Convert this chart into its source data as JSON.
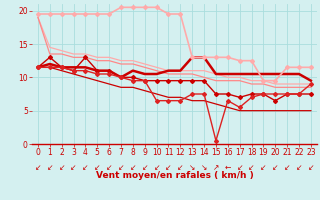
{
  "background_color": "#d4f0f0",
  "grid_color": "#aadddd",
  "xlabel": "Vent moyen/en rafales ( km/h )",
  "xlabel_color": "#cc0000",
  "xlabel_fontsize": 6.5,
  "tick_color": "#cc0000",
  "tick_fontsize": 5.5,
  "ylim": [
    0,
    21
  ],
  "xlim": [
    -0.5,
    23.5
  ],
  "yticks": [
    0,
    5,
    10,
    15,
    20
  ],
  "xticks": [
    0,
    1,
    2,
    3,
    4,
    5,
    6,
    7,
    8,
    9,
    10,
    11,
    12,
    13,
    14,
    15,
    16,
    17,
    18,
    19,
    20,
    21,
    22,
    23
  ],
  "series": [
    {
      "x": [
        0,
        1,
        2,
        3,
        4,
        5,
        6,
        7,
        8,
        9,
        10,
        11,
        12,
        13,
        14,
        15,
        16,
        17,
        18,
        19,
        20,
        21,
        22,
        23
      ],
      "y": [
        19.5,
        19.5,
        19.5,
        19.5,
        19.5,
        19.5,
        19.5,
        20.5,
        20.5,
        20.5,
        20.5,
        19.5,
        19.5,
        13.0,
        13.0,
        13.0,
        13.0,
        12.5,
        12.5,
        9.5,
        9.5,
        11.5,
        11.5,
        11.5
      ],
      "color": "#ffaaaa",
      "linewidth": 1.2,
      "marker": "D",
      "markersize": 2.0
    },
    {
      "x": [
        0,
        1,
        2,
        3,
        4,
        5,
        6,
        7,
        8,
        9,
        10,
        11,
        12,
        13,
        14,
        15,
        16,
        17,
        18,
        19,
        20,
        21,
        22,
        23
      ],
      "y": [
        19.0,
        14.5,
        14.0,
        13.5,
        13.5,
        13.0,
        13.0,
        12.5,
        12.5,
        12.0,
        11.5,
        11.0,
        11.0,
        11.0,
        11.0,
        10.5,
        10.0,
        10.0,
        9.5,
        9.5,
        9.0,
        9.0,
        9.0,
        9.0
      ],
      "color": "#ffaaaa",
      "linewidth": 0.9,
      "marker": null,
      "markersize": 0
    },
    {
      "x": [
        0,
        1,
        2,
        3,
        4,
        5,
        6,
        7,
        8,
        9,
        10,
        11,
        12,
        13,
        14,
        15,
        16,
        17,
        18,
        19,
        20,
        21,
        22,
        23
      ],
      "y": [
        19.0,
        13.5,
        13.5,
        13.0,
        13.0,
        12.5,
        12.5,
        12.0,
        12.0,
        11.5,
        11.0,
        10.5,
        10.5,
        10.5,
        10.0,
        9.5,
        9.5,
        9.5,
        9.0,
        9.0,
        8.5,
        8.5,
        8.5,
        8.5
      ],
      "color": "#ff8888",
      "linewidth": 0.9,
      "marker": null,
      "markersize": 0
    },
    {
      "x": [
        0,
        1,
        2,
        3,
        4,
        5,
        6,
        7,
        8,
        9,
        10,
        11,
        12,
        13,
        14,
        15,
        16,
        17,
        18,
        19,
        20,
        21,
        22,
        23
      ],
      "y": [
        11.5,
        12.0,
        11.5,
        11.5,
        11.5,
        11.0,
        11.0,
        10.0,
        11.0,
        10.5,
        10.5,
        11.0,
        11.0,
        13.0,
        13.0,
        10.5,
        10.5,
        10.5,
        10.5,
        10.5,
        10.5,
        10.5,
        10.5,
        9.5
      ],
      "color": "#cc0000",
      "linewidth": 1.8,
      "marker": null,
      "markersize": 0
    },
    {
      "x": [
        0,
        1,
        2,
        3,
        4,
        5,
        6,
        7,
        8,
        9,
        10,
        11,
        12,
        13,
        14,
        15,
        16,
        17,
        18,
        19,
        20,
        21,
        22,
        23
      ],
      "y": [
        11.5,
        13.0,
        11.5,
        11.0,
        13.0,
        11.0,
        11.0,
        10.0,
        10.0,
        9.5,
        9.5,
        9.5,
        9.5,
        9.5,
        9.5,
        7.5,
        7.5,
        7.0,
        7.5,
        7.5,
        6.5,
        7.5,
        7.5,
        7.5
      ],
      "color": "#cc0000",
      "linewidth": 1.0,
      "marker": "D",
      "markersize": 2.0
    },
    {
      "x": [
        0,
        1,
        2,
        3,
        4,
        5,
        6,
        7,
        8,
        9,
        10,
        11,
        12,
        13,
        14,
        15,
        16,
        17,
        18,
        19,
        20,
        21,
        22,
        23
      ],
      "y": [
        11.5,
        11.5,
        11.5,
        11.0,
        11.0,
        10.5,
        10.5,
        10.0,
        9.5,
        9.5,
        6.5,
        6.5,
        6.5,
        7.5,
        7.5,
        0.5,
        6.5,
        5.5,
        7.0,
        7.5,
        7.5,
        7.5,
        7.5,
        9.0
      ],
      "color": "#dd2222",
      "linewidth": 1.0,
      "marker": "D",
      "markersize": 2.0
    },
    {
      "x": [
        0,
        1,
        2,
        3,
        4,
        5,
        6,
        7,
        8,
        9,
        10,
        11,
        12,
        13,
        14,
        15,
        16,
        17,
        18,
        19,
        20,
        21,
        22,
        23
      ],
      "y": [
        11.5,
        11.5,
        11.0,
        10.5,
        10.0,
        9.5,
        9.0,
        8.5,
        8.5,
        8.0,
        7.5,
        7.0,
        7.0,
        6.5,
        6.5,
        6.0,
        5.5,
        5.0,
        5.0,
        5.0,
        5.0,
        5.0,
        5.0,
        5.0
      ],
      "color": "#cc0000",
      "linewidth": 0.9,
      "marker": null,
      "markersize": 0
    }
  ],
  "wind_arrows": [
    "↙",
    "↙",
    "↙",
    "↙",
    "↙",
    "↙",
    "↙",
    "↙",
    "↙",
    "↙",
    "↙",
    "↙",
    "↙",
    "↘",
    "↘",
    "↗",
    "←",
    "↙",
    "↙",
    "↙",
    "↙",
    "↙",
    "↙",
    "↙"
  ]
}
